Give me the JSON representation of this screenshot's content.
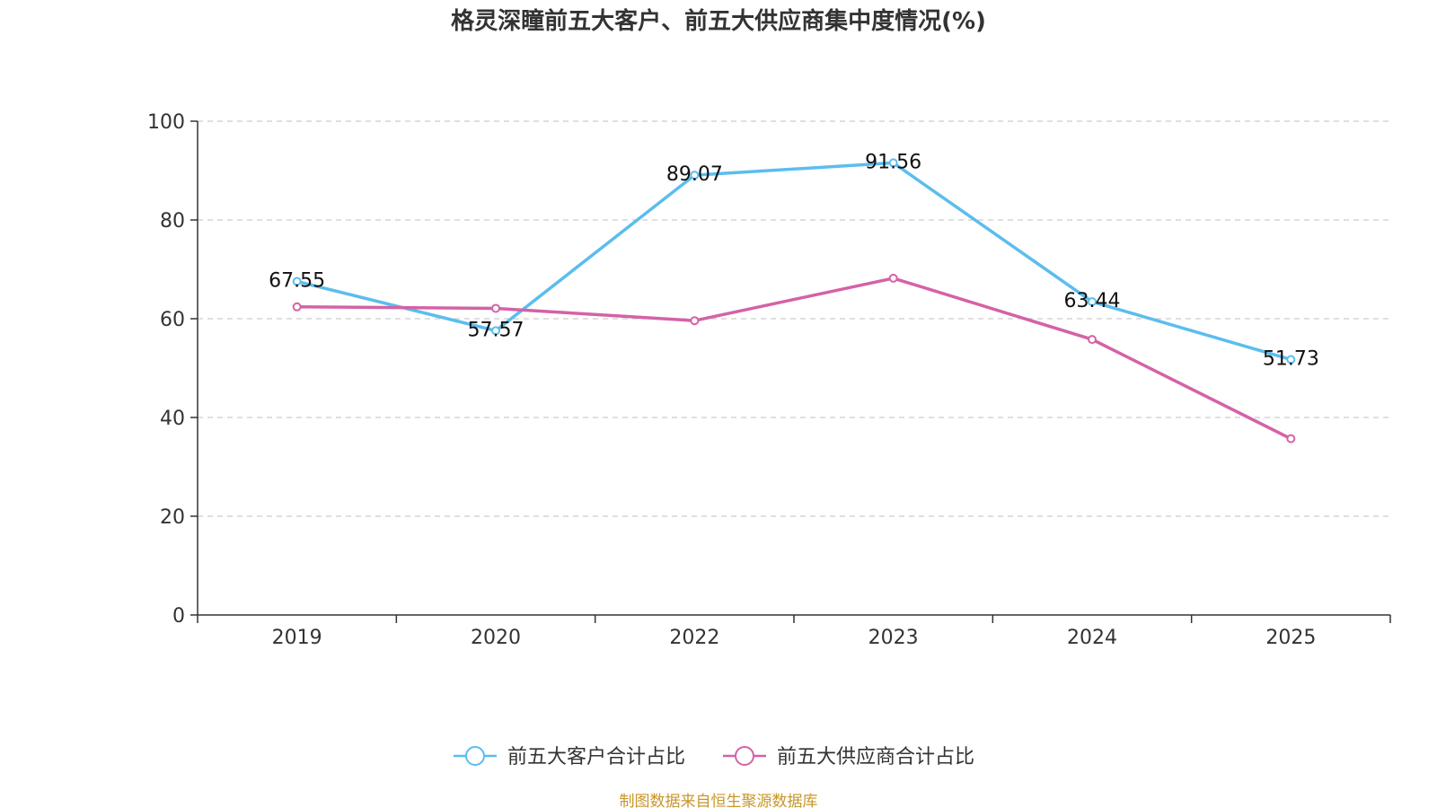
{
  "chart_data": {
    "type": "line",
    "title": "格灵深瞳前五大客户、前五大供应商集中度情况(%)",
    "categories": [
      "2019",
      "2020",
      "2022",
      "2023",
      "2024",
      "2025"
    ],
    "ylim": [
      0,
      100
    ],
    "yticks": [
      "0",
      "20",
      "40",
      "60",
      "80",
      "100"
    ],
    "grid": true,
    "legend_position": "bottom-center",
    "series": [
      {
        "name": "前五大客户合计占比",
        "color": "#5bbdee",
        "values": [
          67.55,
          57.57,
          89.07,
          91.56,
          63.44,
          51.73
        ],
        "labels": [
          "67.55",
          "57.57",
          "89.07",
          "91.56",
          "63.44",
          "51.73"
        ]
      },
      {
        "name": "前五大供应商合计占比",
        "color": "#d462a6",
        "values": [
          62.4,
          62.1,
          59.6,
          68.2,
          55.8,
          35.7
        ]
      }
    ]
  },
  "source": {
    "text": "制图数据来自恒生聚源数据库",
    "color": "#c8962a"
  }
}
